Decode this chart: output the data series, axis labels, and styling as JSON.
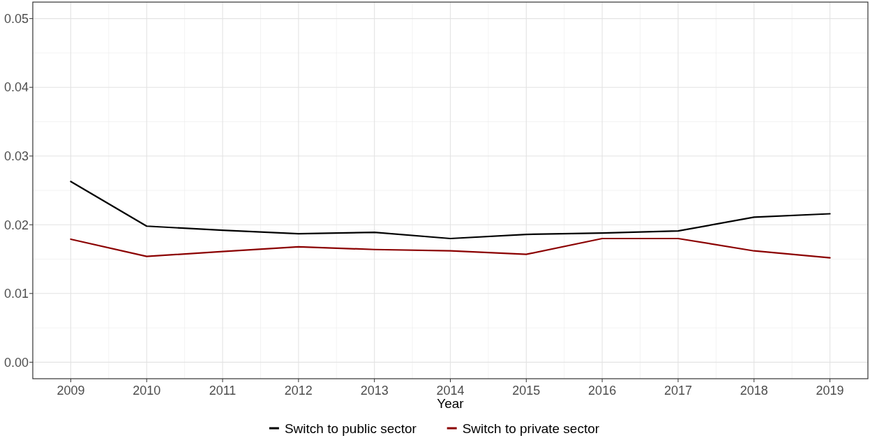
{
  "chart_data": {
    "type": "line",
    "xlabel": "Year",
    "x": [
      2009,
      2010,
      2011,
      2012,
      2013,
      2014,
      2015,
      2016,
      2017,
      2018,
      2019
    ],
    "series": [
      {
        "name": "Switch to public sector",
        "color": "#000000",
        "values": [
          0.0263,
          0.0198,
          0.0192,
          0.0187,
          0.0189,
          0.018,
          0.0186,
          0.0188,
          0.0191,
          0.0211,
          0.0216
        ]
      },
      {
        "name": "Switch to private sector",
        "color": "#8b0000",
        "values": [
          0.0179,
          0.0154,
          0.0161,
          0.0168,
          0.0164,
          0.0162,
          0.0157,
          0.018,
          0.018,
          0.0162,
          0.0152
        ]
      }
    ],
    "xlim": [
      2008.5,
      2019.5
    ],
    "xticks": [
      2009,
      2010,
      2011,
      2012,
      2013,
      2014,
      2015,
      2016,
      2017,
      2018,
      2019
    ],
    "ylim": [
      -0.0024,
      0.0524
    ],
    "yticks": [
      {
        "value": 0,
        "label": "0.00"
      },
      {
        "value": 0.01,
        "label": "0.01"
      },
      {
        "value": 0.02,
        "label": "0.02"
      },
      {
        "value": 0.03,
        "label": "0.03"
      },
      {
        "value": 0.04,
        "label": "0.04"
      },
      {
        "value": 0.05,
        "label": "0.05"
      }
    ],
    "grid": true,
    "legend": "bottom",
    "line_style": "solid",
    "marker": "none"
  }
}
